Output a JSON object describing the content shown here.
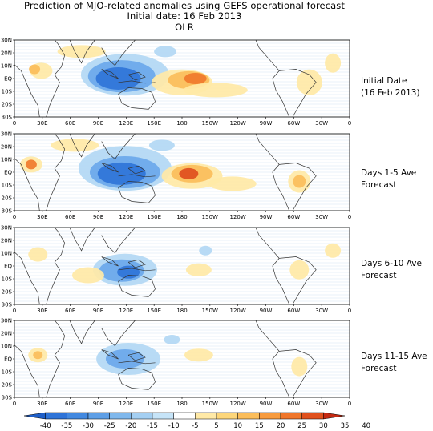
{
  "title": {
    "line1": "Prediction of MJO-related anomalies using GEFS operational forecast",
    "line2": "Initial date: 16 Feb 2013",
    "line3": "OLR"
  },
  "axis": {
    "lat_ticks": [
      "30N",
      "20N",
      "10N",
      "EQ",
      "10S",
      "20S",
      "30S"
    ],
    "lon_ticks": [
      "0",
      "30E",
      "60E",
      "90E",
      "120E",
      "150E",
      "180",
      "150W",
      "120W",
      "90W",
      "60W",
      "30W",
      "0"
    ]
  },
  "panels": [
    {
      "label_line1": "Initial Date",
      "label_line2": "(16 Feb 2013)"
    },
    {
      "label_line1": "Days 1-5 Ave",
      "label_line2": "Forecast"
    },
    {
      "label_line1": "Days 6-10 Ave",
      "label_line2": "Forecast"
    },
    {
      "label_line1": "Days 11-15 Ave",
      "label_line2": "Forecast"
    }
  ],
  "colorbar": {
    "labels": [
      "-40",
      "-35",
      "-30",
      "-25",
      "-20",
      "-15",
      "-10",
      "-5",
      "5",
      "10",
      "15",
      "20",
      "25",
      "30",
      "35",
      "40"
    ],
    "colors": [
      "#1f5fc8",
      "#2f74d8",
      "#4389e0",
      "#5e9fe6",
      "#80b8ec",
      "#a4cff2",
      "#c6e4f8",
      "#ffffff",
      "#ffe9a6",
      "#fdd67a",
      "#fbbd5a",
      "#f79b3e",
      "#f0762a",
      "#e0501c",
      "#c42a12"
    ]
  },
  "colors": {
    "neg_strong": "#2f74d8",
    "neg_mid": "#6aa8ea",
    "neg_light": "#b2d8f4",
    "pos_light": "#ffe9a6",
    "pos_mid": "#fbbd5a",
    "pos_strong": "#f07a2c",
    "pos_deep": "#e04e1e",
    "coast": "#333333"
  }
}
